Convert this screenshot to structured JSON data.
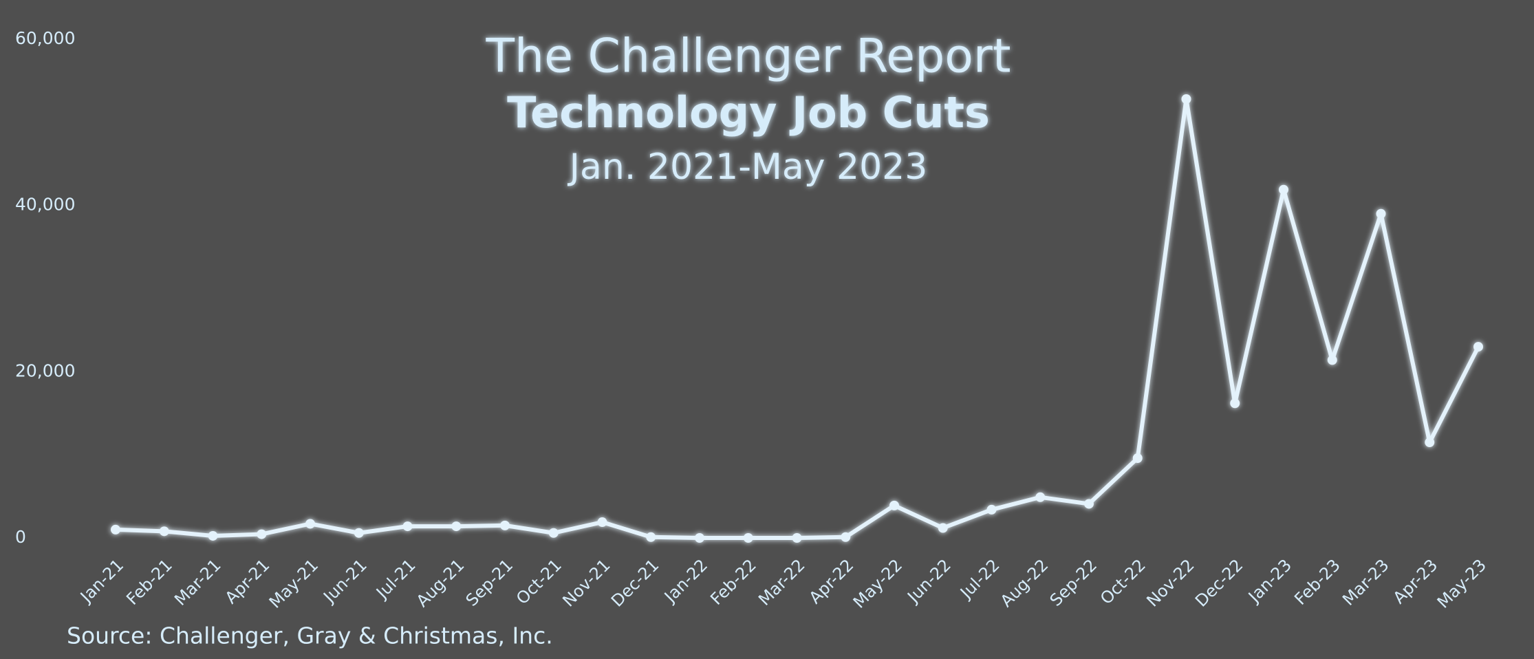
{
  "chart_data": {
    "type": "line",
    "title": "The Challenger Report",
    "subtitle": "Technology Job Cuts",
    "date_range": "Jan. 2021-May 2023",
    "source": "Source: Challenger, Gray & Christmas, Inc.",
    "categories": [
      "Jan-21",
      "Feb-21",
      "Mar-21",
      "Apr-21",
      "May-21",
      "Jun-21",
      "Jul-21",
      "Aug-21",
      "Sep-21",
      "Oct-21",
      "Nov-21",
      "Dec-21",
      "Jan-22",
      "Feb-22",
      "Mar-22",
      "Apr-22",
      "May-22",
      "Jun-22",
      "Jul-22",
      "Aug-22",
      "Sep-22",
      "Oct-22",
      "Nov-22",
      "Dec-22",
      "Jan-23",
      "Feb-23",
      "Mar-23",
      "Apr-23",
      "May-23"
    ],
    "series": [
      {
        "color": "#e4f2fb",
        "values": [
          1000,
          800,
          250,
          450,
          1700,
          600,
          1400,
          1400,
          1500,
          600,
          1900,
          100,
          0,
          0,
          0,
          100,
          3900,
          1200,
          3400,
          4900,
          4100,
          9600,
          52800,
          16200,
          41900,
          21400,
          39000,
          11500,
          23000
        ]
      }
    ],
    "ylim": [
      0,
      60000
    ],
    "yticks": [
      {
        "value": 0,
        "label": "0"
      },
      {
        "value": 20000,
        "label": "20,000"
      },
      {
        "value": 40000,
        "label": "40,000"
      },
      {
        "value": 60000,
        "label": "60,000"
      }
    ],
    "grid": false
  }
}
